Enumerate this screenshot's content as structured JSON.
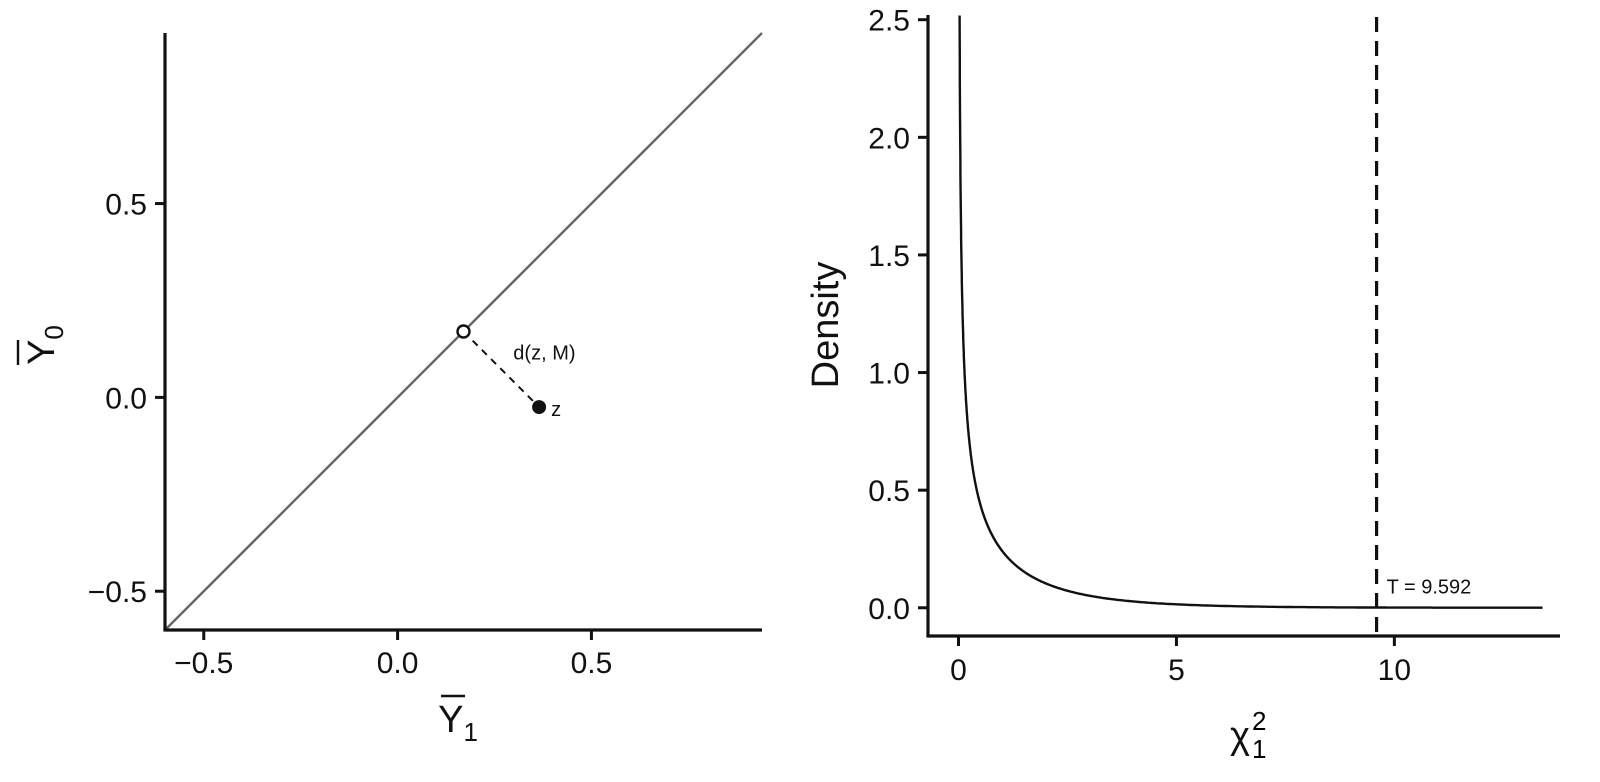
{
  "chart_data": [
    {
      "type": "scatter",
      "title": "",
      "xlabel": "Y",
      "xlabel_sub": "1",
      "ylabel": "Y",
      "ylabel_sub": "0",
      "xlim": [
        -0.6,
        0.94
      ],
      "ylim": [
        -0.6,
        0.94
      ],
      "xticks": [
        -0.5,
        0.0,
        0.5
      ],
      "yticks": [
        -0.5,
        0.0,
        0.5
      ],
      "xtick_labels": [
        "−0.5",
        "0.0",
        "0.5"
      ],
      "ytick_labels": [
        "−0.5",
        "0.0",
        "0.5"
      ],
      "grid": false,
      "reference_line": {
        "slope": 1,
        "intercept": 0,
        "color": "#666666"
      },
      "points": [
        {
          "label": "z",
          "x": 0.365,
          "y": -0.025,
          "fill": "filled"
        },
        {
          "label": "",
          "x": 0.17,
          "y": 0.17,
          "fill": "open"
        }
      ],
      "segment": {
        "from": [
          0.17,
          0.17
        ],
        "to": [
          0.365,
          -0.025
        ],
        "style": "dashed",
        "label": "d(z, M)"
      }
    },
    {
      "type": "line",
      "title": "",
      "xlabel": "χ",
      "xlabel_sup": "2",
      "xlabel_sub": "1",
      "ylabel": "Density",
      "xlim": [
        -0.7,
        13.8
      ],
      "ylim": [
        -0.12,
        2.52
      ],
      "xticks": [
        0,
        5,
        10
      ],
      "yticks": [
        0.0,
        0.5,
        1.0,
        1.5,
        2.0,
        2.5
      ],
      "xtick_labels": [
        "0",
        "5",
        "10"
      ],
      "ytick_labels": [
        "0.0",
        "0.5",
        "1.0",
        "1.5",
        "2.0",
        "2.5"
      ],
      "grid": false,
      "series": [
        {
          "distribution": "chi-squared, df = 1",
          "x_range": [
            0.0,
            13.4
          ]
        }
      ],
      "vline": {
        "x": 9.592,
        "style": "dashed",
        "label": "T = 9.592"
      }
    }
  ]
}
